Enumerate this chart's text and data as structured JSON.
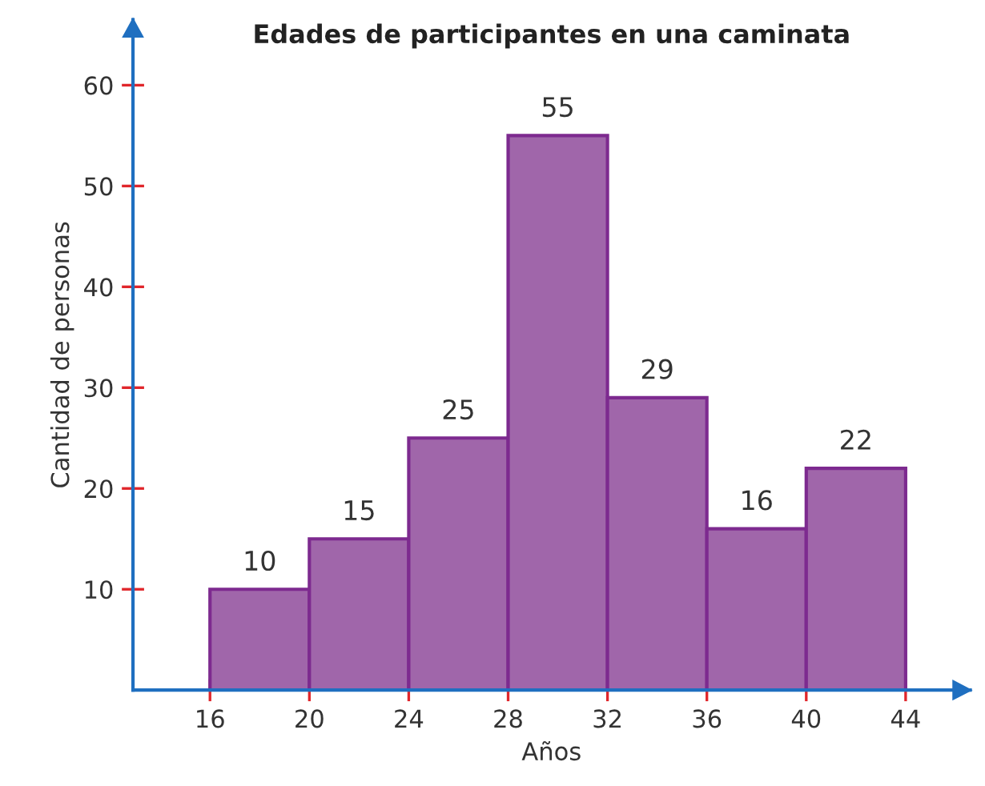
{
  "chart_data": {
    "type": "histogram",
    "title": "Edades de participantes en una caminata",
    "xlabel": "Años",
    "ylabel": "Cantidad de personas",
    "bins": [
      16,
      20,
      24,
      28,
      32,
      36,
      40,
      44
    ],
    "values": [
      10,
      15,
      25,
      55,
      29,
      16,
      22
    ],
    "color": "#a066aa",
    "xlim": [
      12.9,
      46.6
    ],
    "ylim": [
      0,
      66.5
    ],
    "xticks": [
      16,
      20,
      24,
      28,
      32,
      36,
      40,
      44
    ],
    "yticks": [
      10,
      20,
      30,
      40,
      50,
      60
    ],
    "data_labels": true,
    "grid": false
  }
}
